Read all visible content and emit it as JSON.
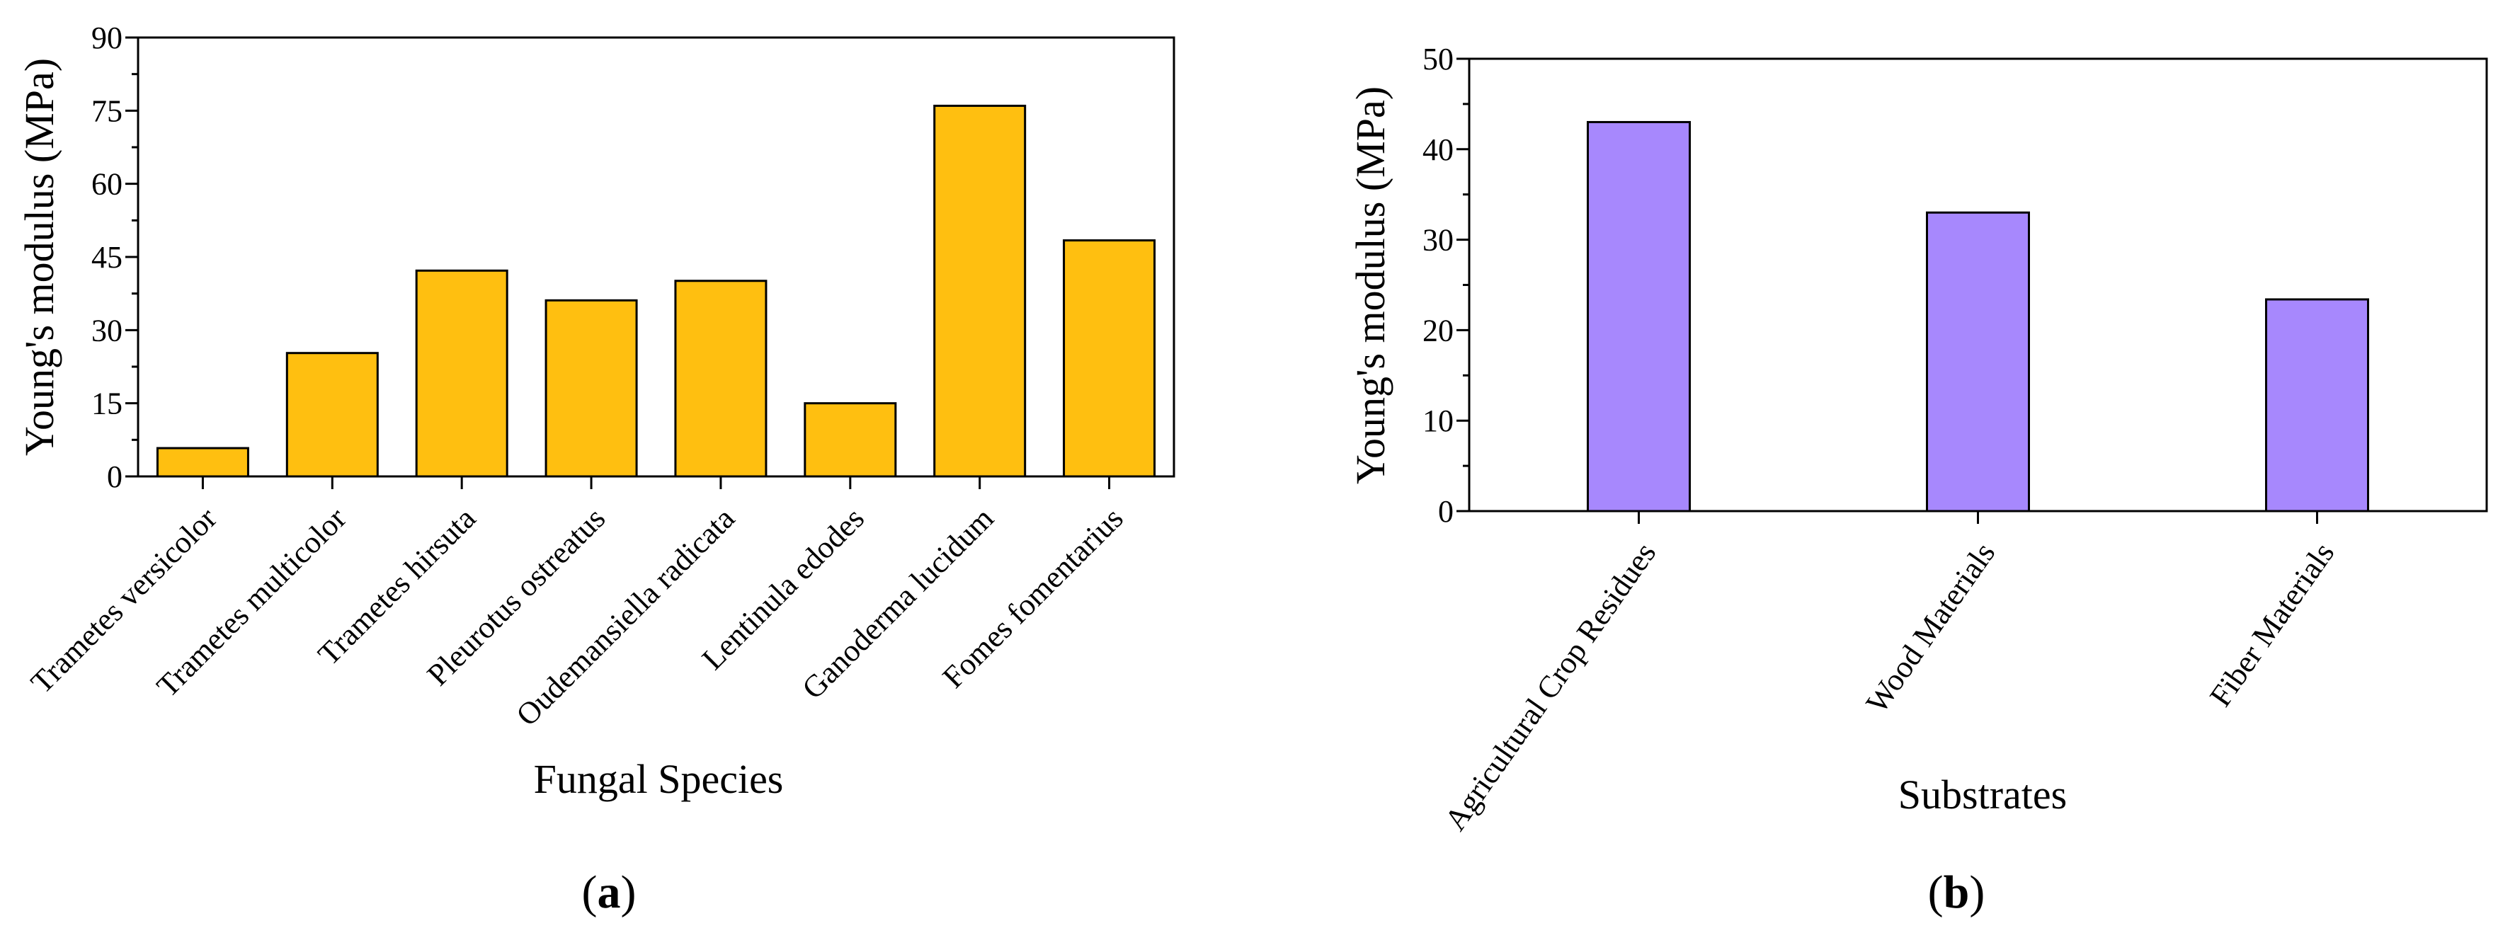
{
  "chart_data": [
    {
      "id": "a",
      "type": "bar",
      "panel_label": "a",
      "xlabel": "Fungal Species",
      "ylabel": "Young's modulus (MPa)",
      "ylim": [
        0,
        90
      ],
      "yticks": [
        0,
        15,
        30,
        45,
        60,
        75,
        90
      ],
      "categories": [
        "Trametes versicolor",
        "Trametes multicolor",
        "Trametes hirsuta",
        "Pleurotus ostreatus",
        "Oudemansiella radicata",
        "Lentinula edodes",
        "Ganoderma lucidum",
        "Fomes fomentarius"
      ],
      "values": [
        5.8,
        25.3,
        42.2,
        36.1,
        40.1,
        15.0,
        76.0,
        48.4
      ],
      "bar_color": "#FFBF10"
    },
    {
      "id": "b",
      "type": "bar",
      "panel_label": "b",
      "xlabel": "Substrates",
      "ylabel": "Young's modulus (MPa)",
      "ylim": [
        0,
        50
      ],
      "yticks": [
        0,
        10,
        20,
        30,
        40,
        50
      ],
      "categories": [
        "Agricultural Crop Residues",
        "Wood Materials",
        "Fiber Materials"
      ],
      "values": [
        43.0,
        33.0,
        23.4
      ],
      "bar_color": "#A788FD"
    }
  ]
}
